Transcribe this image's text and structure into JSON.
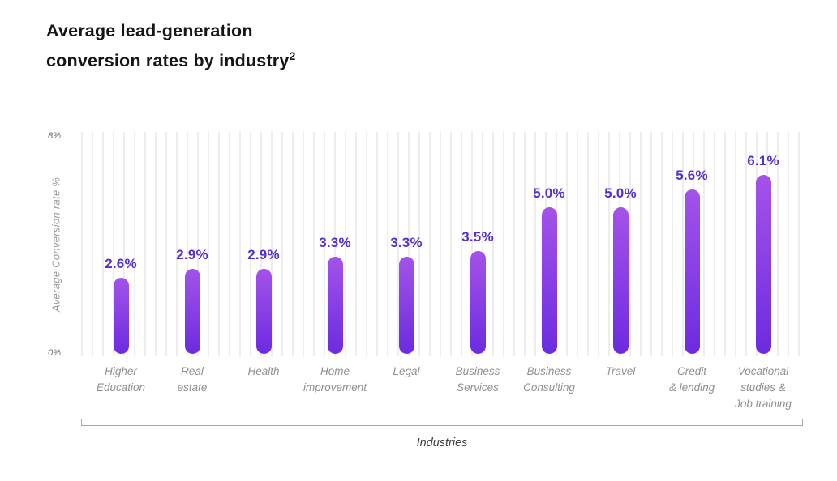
{
  "title": {
    "line1": "Average lead-generation",
    "line2": "conversion rates by industry",
    "superscript": "2"
  },
  "chart_data": {
    "type": "bar",
    "title": "Average lead-generation conversion rates by industry",
    "footnote_marker": "2",
    "categories": [
      "Higher Education",
      "Real estate",
      "Health",
      "Home improvement",
      "Legal",
      "Business Services",
      "Business Consulting",
      "Travel",
      "Credit & lending",
      "Vocational studies & Job training"
    ],
    "category_lines": [
      [
        "Higher",
        "Education"
      ],
      [
        "Real",
        "estate"
      ],
      [
        "Health"
      ],
      [
        "Home",
        "improvement"
      ],
      [
        "Legal"
      ],
      [
        "Business",
        "Services"
      ],
      [
        "Business",
        "Consulting"
      ],
      [
        "Travel"
      ],
      [
        "Credit",
        "& lending"
      ],
      [
        "Vocational",
        "studies &",
        "Job training"
      ]
    ],
    "values": [
      2.6,
      2.9,
      2.9,
      3.3,
      3.3,
      3.5,
      5.0,
      5.0,
      5.6,
      6.1
    ],
    "value_labels": [
      "2.6%",
      "2.9%",
      "2.9%",
      "3.3%",
      "3.3%",
      "3.5%",
      "5.0%",
      "5.0%",
      "5.6%",
      "6.1%"
    ],
    "xlabel": "Industries",
    "ylabel": "Average Conversion rate  %",
    "yticks": [
      "8%",
      "0%"
    ],
    "ylim": [
      0,
      8
    ],
    "grid": "vertical-light",
    "legend": "none",
    "colors": {
      "bar_gradient_top": "#a453e8",
      "bar_gradient_bottom": "#6c2be0",
      "value_label": "#5530cc",
      "gridline": "#ededed",
      "category_label": "#909090",
      "axis_tick": "#6b6b6b",
      "title_text": "#151515"
    }
  }
}
